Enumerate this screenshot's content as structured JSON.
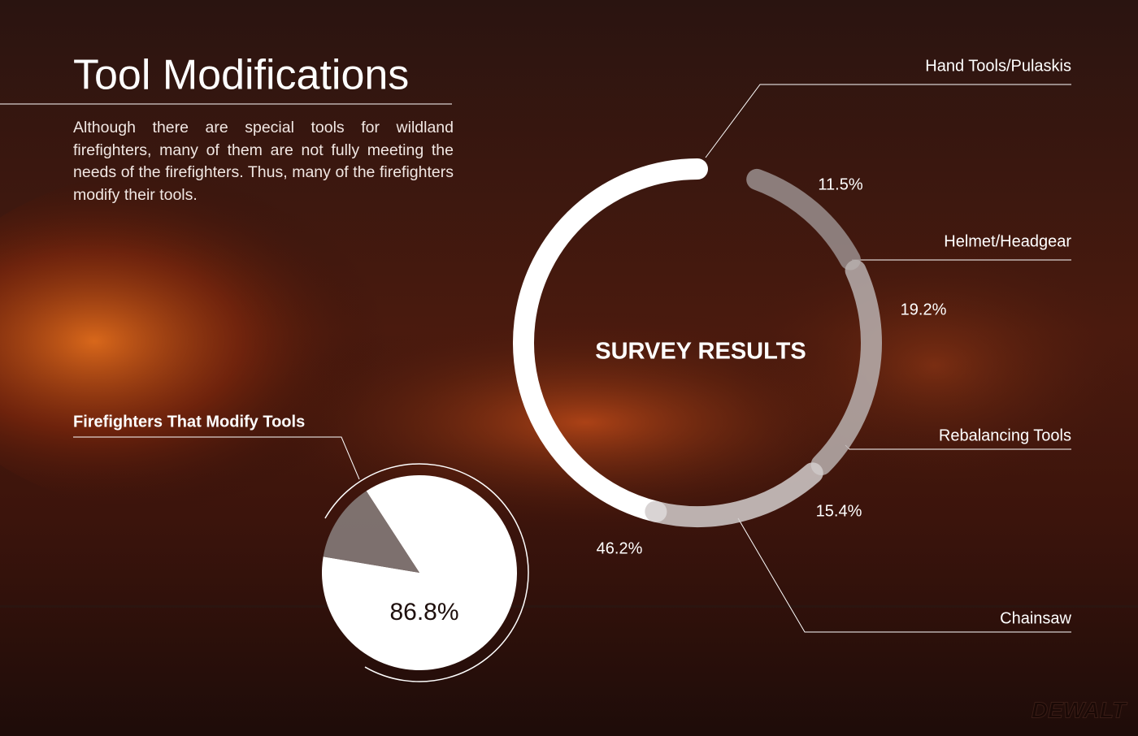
{
  "header": {
    "title": "Tool Modifications",
    "body": "Although there are special tools for wildland firefighters, many of them are not fully meeting the needs of the firefighters. Thus, many of the firefighters modify their tools.",
    "logo": "DEWALT"
  },
  "chart_data": [
    {
      "type": "radial",
      "title": "SURVEY RESULTS",
      "categories": [
        "Hand Tools/Pulaskis",
        "Helmet/Headgear",
        "Rebalancing Tools",
        "Chainsaw"
      ],
      "values": [
        46.2,
        11.5,
        19.2,
        15.4
      ],
      "value_labels": [
        "46.2%",
        "11.5%",
        "19.2%",
        "15.4%"
      ],
      "colors": [
        "#ffffff",
        "#9a8f8e",
        "#b8b0af",
        "#d2cdcc"
      ]
    },
    {
      "type": "pie",
      "title": "Firefighters That Modify Tools",
      "values": [
        86.8,
        13.2
      ],
      "value_labels": [
        "86.8%",
        null
      ],
      "colors": [
        "#ffffff",
        "#8a8180"
      ]
    }
  ]
}
